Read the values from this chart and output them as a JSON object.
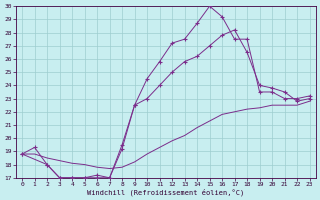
{
  "xlabel": "Windchill (Refroidissement éolien,°C)",
  "bg_color": "#c8eef0",
  "grid_color": "#9ecdd0",
  "line_color": "#7b2d8b",
  "xlim": [
    -0.5,
    23.5
  ],
  "ylim": [
    17,
    30
  ],
  "xticks": [
    0,
    1,
    2,
    3,
    4,
    5,
    6,
    7,
    8,
    9,
    10,
    11,
    12,
    13,
    14,
    15,
    16,
    17,
    18,
    19,
    20,
    21,
    22,
    23
  ],
  "yticks": [
    17,
    18,
    19,
    20,
    21,
    22,
    23,
    24,
    25,
    26,
    27,
    28,
    29,
    30
  ],
  "line1_x": [
    0,
    1,
    2,
    3,
    4,
    5,
    6,
    7,
    8,
    9,
    10,
    11,
    12,
    13,
    14,
    15,
    16,
    17,
    18,
    19,
    20,
    21,
    22,
    23
  ],
  "line1_y": [
    18.8,
    19.3,
    18.0,
    17.0,
    17.0,
    17.0,
    17.0,
    17.0,
    19.5,
    22.5,
    24.5,
    25.8,
    27.2,
    27.5,
    28.7,
    30.0,
    29.2,
    27.5,
    27.5,
    23.5,
    23.5,
    23.0,
    23.0,
    23.2
  ],
  "line2_x": [
    0,
    2,
    3,
    4,
    5,
    6,
    7,
    8,
    9,
    10,
    11,
    12,
    13,
    14,
    15,
    16,
    17,
    18,
    19,
    20,
    21,
    22,
    23
  ],
  "line2_y": [
    18.8,
    18.0,
    17.0,
    17.0,
    17.0,
    17.2,
    17.0,
    19.2,
    22.5,
    23.0,
    24.0,
    25.0,
    25.8,
    26.2,
    27.0,
    27.8,
    28.2,
    26.5,
    24.0,
    23.8,
    23.5,
    22.8,
    23.0
  ],
  "line3_x": [
    0,
    1,
    2,
    3,
    4,
    5,
    6,
    7,
    8,
    9,
    10,
    11,
    12,
    13,
    14,
    15,
    16,
    17,
    18,
    19,
    20,
    21,
    22,
    23
  ],
  "line3_y": [
    18.8,
    18.8,
    18.5,
    18.3,
    18.1,
    18.0,
    17.8,
    17.7,
    17.8,
    18.2,
    18.8,
    19.3,
    19.8,
    20.2,
    20.8,
    21.3,
    21.8,
    22.0,
    22.2,
    22.3,
    22.5,
    22.5,
    22.5,
    22.8
  ]
}
